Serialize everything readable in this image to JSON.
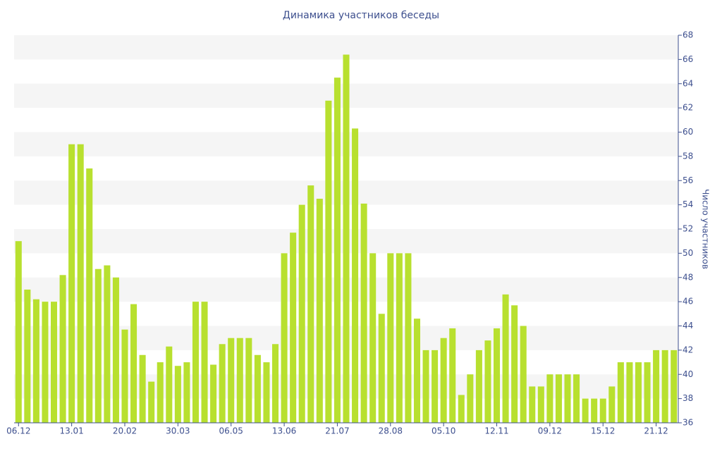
{
  "chart_data": {
    "type": "bar",
    "title": "Динамика участников беседы",
    "y_label": "Число участников",
    "categories": [
      "06.12",
      null,
      null,
      null,
      null,
      null,
      "13.01",
      null,
      null,
      null,
      null,
      null,
      "20.02",
      null,
      null,
      null,
      null,
      null,
      "30.03",
      null,
      null,
      null,
      null,
      null,
      "06.05",
      null,
      null,
      null,
      null,
      null,
      "13.06",
      null,
      null,
      null,
      null,
      null,
      "21.07",
      null,
      null,
      null,
      null,
      null,
      "28.08",
      null,
      null,
      null,
      null,
      null,
      "05.10",
      null,
      null,
      null,
      null,
      null,
      "12.11",
      null,
      null,
      null,
      null,
      null,
      "09.12",
      null,
      null,
      null,
      null,
      null,
      "15.12",
      null,
      null,
      null,
      null,
      null,
      "21.12",
      null,
      null
    ],
    "values": [
      51,
      47,
      46.2,
      46,
      46,
      48.2,
      59,
      59,
      57,
      48.7,
      49,
      48,
      43.7,
      45.8,
      41.6,
      39.4,
      41,
      42.3,
      40.7,
      41,
      46,
      46,
      40.8,
      42.5,
      43,
      43,
      43,
      41.6,
      41,
      42.5,
      50,
      51.7,
      54,
      55.6,
      54.5,
      62.6,
      64.5,
      66.4,
      60.3,
      54.1,
      50,
      45,
      50,
      50,
      50,
      44.6,
      42,
      42,
      43,
      43.8,
      38.3,
      40,
      42,
      42.8,
      43.8,
      46.6,
      45.7,
      44,
      39,
      39,
      40,
      40,
      40,
      40,
      38,
      38,
      38,
      39,
      41,
      41,
      41,
      41,
      42,
      42,
      42
    ],
    "color": "#b8e02f",
    "ylim": [
      36,
      68
    ],
    "yticks": [
      36,
      38,
      40,
      42,
      44,
      46,
      48,
      50,
      52,
      54,
      56,
      58,
      60,
      62,
      64,
      66,
      68
    ],
    "y_axis_side": "right",
    "grid": true
  }
}
